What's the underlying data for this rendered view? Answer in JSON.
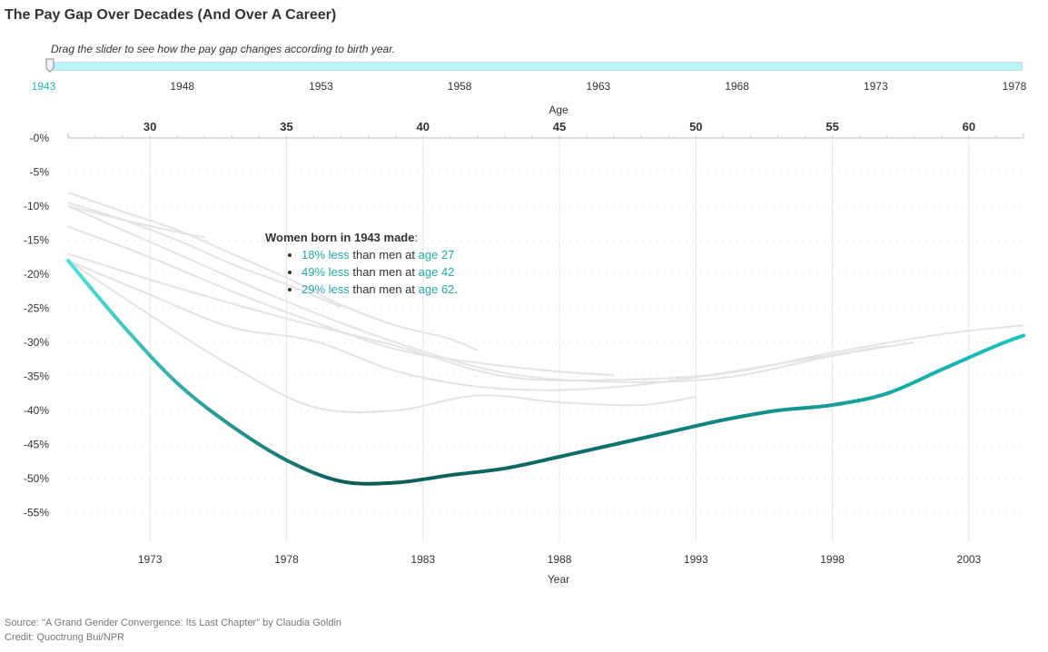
{
  "title": "The Pay Gap Over Decades (And Over A Career)",
  "instructions": "Drag the slider to see how the pay gap changes according to birth year.",
  "slider": {
    "labels": [
      "1943",
      "1948",
      "1953",
      "1958",
      "1963",
      "1968",
      "1973",
      "1978"
    ],
    "selected": "1943",
    "track_color": "#b6f5f4"
  },
  "annotation": {
    "heading": "Women born in 1943 made",
    "heading_suffix": ":",
    "items": [
      {
        "pct": "18% less",
        "mid": " than men at ",
        "age": "age 27",
        "end": ""
      },
      {
        "pct": "49% less",
        "mid": " than men at ",
        "age": "age 42",
        "end": ""
      },
      {
        "pct": "29% less",
        "mid": " than men at ",
        "age": "age 62",
        "end": "."
      }
    ]
  },
  "source": "Source: \"A Grand Gender Convergence: Its Last Chapter\" by Claudia Goldin",
  "credit": "Credit: Quoctrung Bui/NPR",
  "chart_data": {
    "type": "line",
    "x_top_label": "Age",
    "x_top_ticks": [
      "30",
      "35",
      "40",
      "45",
      "50",
      "55",
      "60"
    ],
    "x_top_tick_values": [
      30,
      35,
      40,
      45,
      50,
      55,
      60
    ],
    "xlabel": "Year",
    "x_ticks": [
      "1973",
      "1978",
      "1983",
      "1988",
      "1993",
      "1998",
      "2003"
    ],
    "x_tick_values": [
      1973,
      1978,
      1983,
      1988,
      1993,
      1998,
      2003
    ],
    "xlim": [
      1970,
      2005
    ],
    "y_ticks": [
      "-0%",
      "-5%",
      "-10%",
      "-15%",
      "-20%",
      "-25%",
      "-30%",
      "-35%",
      "-40%",
      "-45%",
      "-50%",
      "-55%"
    ],
    "y_tick_values": [
      0,
      -5,
      -10,
      -15,
      -20,
      -25,
      -30,
      -35,
      -40,
      -45,
      -50,
      -55
    ],
    "ylim": [
      -60,
      0
    ],
    "grid": "vertical lines at year ticks, dotted horizontal lines",
    "colors": {
      "highlight_start": "#4ee0dc",
      "highlight_mid": "#0a5a55",
      "highlight_end": "#1cc3bd",
      "background_series": "#e3e3e3"
    },
    "highlighted_series": {
      "name": "1943",
      "x": [
        1970,
        1972,
        1974,
        1976,
        1978,
        1980,
        1982,
        1984,
        1986,
        1988,
        1990,
        1992,
        1994,
        1996,
        1998,
        2000,
        2002,
        2004,
        2005
      ],
      "y": [
        -18,
        -27.5,
        -36,
        -42.3,
        -47.3,
        -50.4,
        -50.6,
        -49.5,
        -48.5,
        -46.8,
        -45,
        -43.2,
        -41.4,
        -40,
        -39.2,
        -37.5,
        -34,
        -30.5,
        -29
      ]
    },
    "background_series": [
      {
        "x": [
          1970,
          1972,
          1974,
          1975
        ],
        "y": [
          -10,
          -12,
          -13.8,
          -14.6
        ]
      },
      {
        "x": [
          1970,
          1972,
          1974,
          1976,
          1978,
          1980
        ],
        "y": [
          -9.5,
          -12,
          -15,
          -18.5,
          -21.5,
          -24.8
        ]
      },
      {
        "x": [
          1970,
          1972,
          1974,
          1976,
          1978,
          1980,
          1982,
          1984,
          1985
        ],
        "y": [
          -8,
          -10.8,
          -13.5,
          -17,
          -20.5,
          -24.5,
          -27.5,
          -29.5,
          -31.2
        ]
      },
      {
        "x": [
          1970,
          1973,
          1976,
          1979,
          1982,
          1985,
          1988,
          1990
        ],
        "y": [
          -13,
          -17.5,
          -22.5,
          -27,
          -31,
          -33,
          -34.3,
          -34.8
        ]
      },
      {
        "x": [
          1970,
          1974,
          1978,
          1982,
          1986,
          1990,
          1994,
          1998,
          2001
        ],
        "y": [
          -10,
          -17,
          -24,
          -30,
          -34.5,
          -35.8,
          -35.2,
          -32,
          -30
        ]
      },
      {
        "x": [
          1970,
          1974,
          1978,
          1982,
          1986,
          1990,
          1994,
          1998,
          2002,
          2005
        ],
        "y": [
          -17,
          -22,
          -26.5,
          -30.5,
          -35,
          -35.5,
          -34.6,
          -31.5,
          -28.8,
          -27.5
        ]
      },
      {
        "x": [
          1970,
          1973,
          1976,
          1979,
          1982,
          1985,
          1988,
          1991,
          1994,
          1997,
          2000
        ],
        "y": [
          -18,
          -23,
          -27.8,
          -29.8,
          -34.2,
          -36.5,
          -37,
          -36.2,
          -34.5,
          -32.5,
          -30.5
        ]
      },
      {
        "x": [
          1970,
          1973,
          1976,
          1979,
          1982,
          1985,
          1988,
          1991,
          1993
        ],
        "y": [
          -18,
          -26,
          -33.5,
          -39.5,
          -40,
          -37.8,
          -38.8,
          -39.2,
          -38
        ]
      }
    ]
  }
}
